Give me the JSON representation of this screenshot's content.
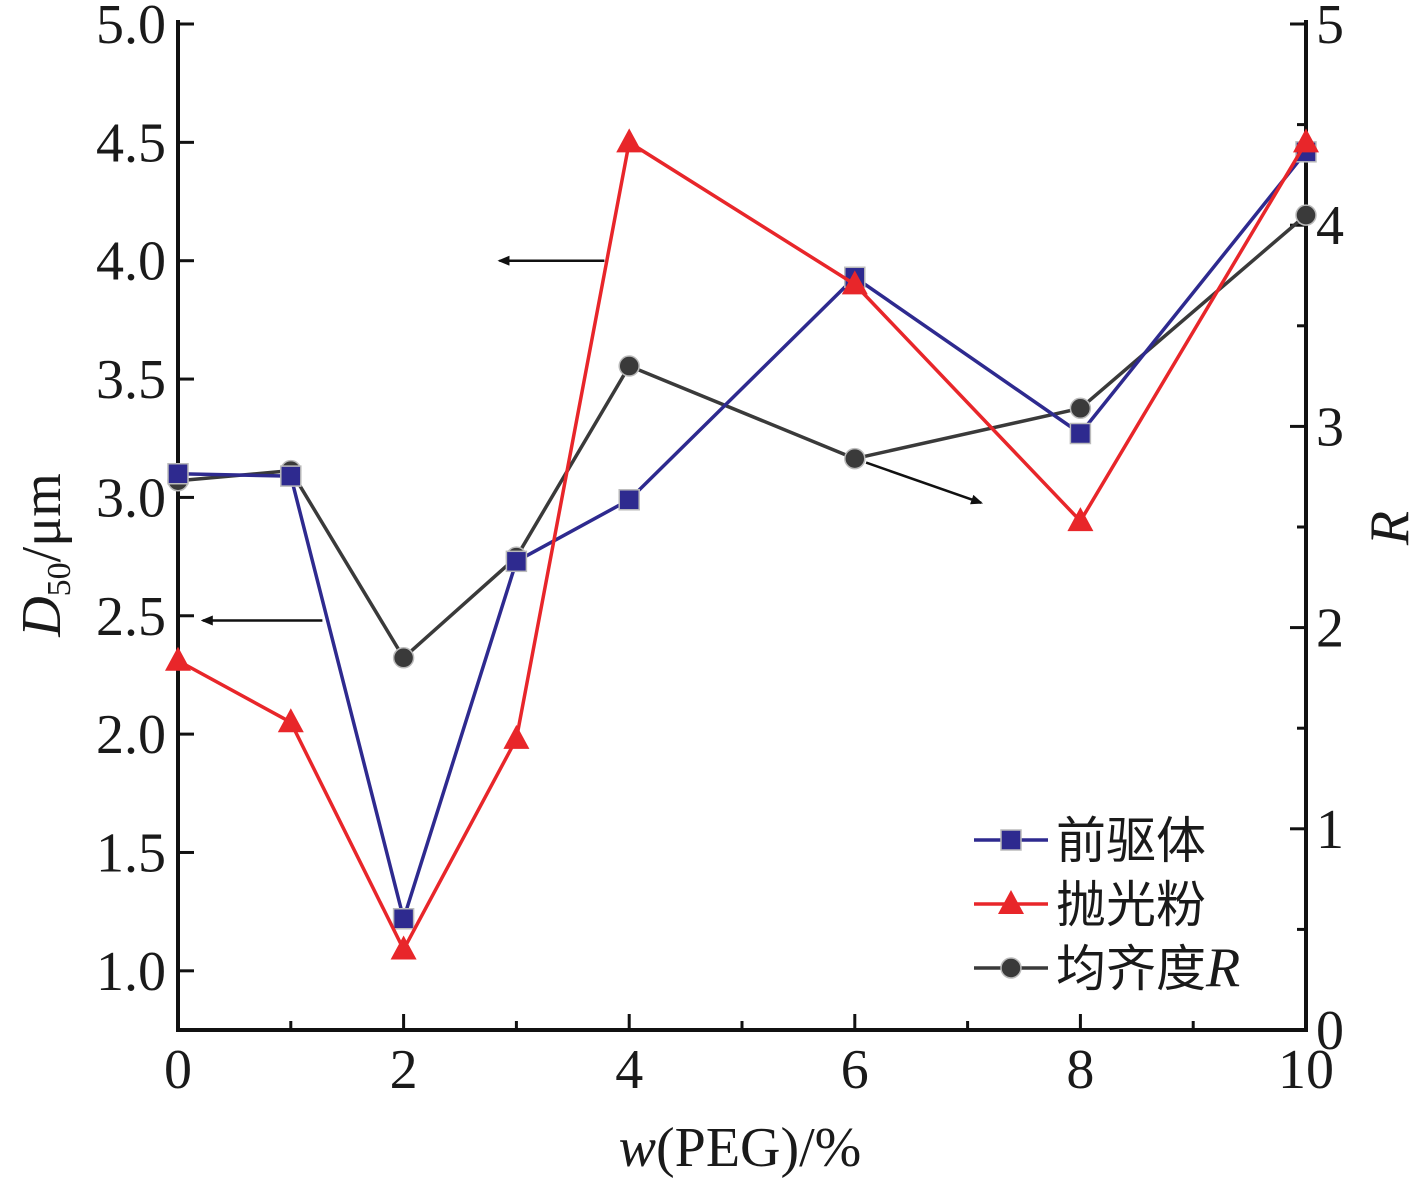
{
  "chart_data": {
    "type": "line",
    "x": [
      0,
      1,
      2,
      3,
      4,
      6,
      8,
      10
    ],
    "xticks": [
      "0",
      "2",
      "4",
      "6",
      "8",
      "10"
    ],
    "xtick_values": [
      0,
      2,
      4,
      6,
      8,
      10
    ],
    "xlim": [
      0,
      10
    ],
    "xlabel": {
      "prefix": "w",
      "rest": "(PEG)/%"
    },
    "ylabel_left": {
      "main": "D",
      "sub": "50",
      "rest": "/μm"
    },
    "ylabel_right": "R",
    "ylim_left": [
      0.75,
      5.0
    ],
    "ylim_right": [
      0,
      5
    ],
    "yticks_left": [
      "1.0",
      "1.5",
      "2.0",
      "2.5",
      "3.0",
      "3.5",
      "4.0",
      "4.5",
      "5.0"
    ],
    "ytick_values_left": [
      1.0,
      1.5,
      2.0,
      2.5,
      3.0,
      3.5,
      4.0,
      4.5,
      5.0
    ],
    "yticks_right": [
      "0",
      "1",
      "2",
      "3",
      "4",
      "5"
    ],
    "ytick_values_right": [
      0,
      1,
      2,
      3,
      4,
      5
    ],
    "series": [
      {
        "name": "前驱体",
        "axis": "left",
        "marker": "square",
        "color": "#2e2a8f",
        "values": [
          3.1,
          3.09,
          1.22,
          2.73,
          2.99,
          3.93,
          3.27,
          4.46
        ]
      },
      {
        "name": "抛光粉",
        "axis": "left",
        "marker": "triangle",
        "color": "#e8262a",
        "values": [
          2.31,
          2.05,
          1.09,
          1.98,
          4.5,
          3.9,
          2.9,
          4.5
        ]
      },
      {
        "name": "均齐度R",
        "axis": "right",
        "marker": "circle",
        "color": "#3a3a3a",
        "values": [
          2.73,
          2.78,
          1.85,
          2.35,
          3.3,
          2.84,
          3.09,
          4.05
        ]
      }
    ],
    "legend": {
      "position": "bottom-right",
      "entries": [
        {
          "text": "前驱体"
        },
        {
          "text": "抛光粉"
        },
        {
          "cjk": "均齐度",
          "italic": "R"
        }
      ]
    },
    "annotations": [
      {
        "type": "arrow",
        "points_to": "left-axis",
        "near_series": "抛光粉"
      },
      {
        "type": "arrow",
        "points_to": "left-axis",
        "near_series": "前驱体"
      },
      {
        "type": "arrow",
        "points_to": "right-axis",
        "near_series": "均齐度R"
      }
    ]
  }
}
